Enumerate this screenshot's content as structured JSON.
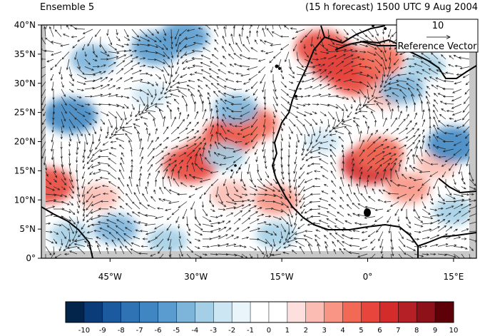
{
  "titles": {
    "left": "Ensemble 5",
    "right": "(15 h forecast) 1500 UTC 9 Aug 2004"
  },
  "reference_vector": {
    "magnitude": "10",
    "label": "Reference Vector"
  },
  "axes": {
    "lon_ticks": [
      "45°W",
      "30°W",
      "15°W",
      "0°",
      "15°E"
    ],
    "lat_ticks": [
      "0°",
      "5°N",
      "10°N",
      "15°N",
      "20°N",
      "25°N",
      "30°N",
      "35°N",
      "40°N"
    ]
  },
  "map_extent": {
    "lon": [
      -57,
      19
    ],
    "lat": [
      0,
      40
    ]
  },
  "colorbar": {
    "labels": [
      "-10",
      "-9",
      "-8",
      "-7",
      "-6",
      "-5",
      "-4",
      "-3",
      "-2",
      "-1",
      "0",
      "1",
      "2",
      "3",
      "4",
      "5",
      "6",
      "7",
      "8",
      "9",
      "10"
    ],
    "colors": [
      "#03254c",
      "#0b3c7a",
      "#1c5aa0",
      "#2f73b5",
      "#3f86c2",
      "#5a9ccf",
      "#7cb4da",
      "#a4cfe6",
      "#cce6f3",
      "#eaf5fb",
      "#ffffff",
      "#ffffff",
      "#fde0dd",
      "#fbbcb3",
      "#f89585",
      "#f26a56",
      "#e8453c",
      "#d42b2b",
      "#b51f26",
      "#8e1119",
      "#5e0008"
    ]
  },
  "chart_data": {
    "type": "heatmap",
    "title": "(15 h forecast) 1500 UTC 9 Aug 2004",
    "xlim": [
      -57,
      19
    ],
    "ylim": [
      0,
      40
    ],
    "cells": [
      {
        "lon": -5,
        "lat": 33.5,
        "v": 7
      },
      {
        "lon": -8,
        "lat": 36,
        "v": 6
      },
      {
        "lon": -2,
        "lat": 31,
        "v": 6
      },
      {
        "lon": 2,
        "lat": 34,
        "v": 5
      },
      {
        "lon": -24,
        "lat": 21,
        "v": 6
      },
      {
        "lon": -20,
        "lat": 23,
        "v": 5
      },
      {
        "lon": -28,
        "lat": 18,
        "v": 5
      },
      {
        "lon": -31,
        "lat": 16,
        "v": 6
      },
      {
        "lon": 0.5,
        "lat": 16,
        "v": 7
      },
      {
        "lon": 2,
        "lat": 18,
        "v": 5
      },
      {
        "lon": 7,
        "lat": 12,
        "v": 4
      },
      {
        "lon": -56,
        "lat": 12.5,
        "v": 6
      },
      {
        "lon": -16,
        "lat": 10,
        "v": 4
      },
      {
        "lon": -24,
        "lat": 11,
        "v": 3
      },
      {
        "lon": 12,
        "lat": 16,
        "v": 3
      },
      {
        "lon": -47,
        "lat": 10.5,
        "v": 3
      },
      {
        "lon": 3,
        "lat": 28,
        "v": 3
      },
      {
        "lon": -48,
        "lat": 34,
        "v": -4
      },
      {
        "lon": -37,
        "lat": 36,
        "v": -5
      },
      {
        "lon": -32,
        "lat": 38,
        "v": -5
      },
      {
        "lon": -52,
        "lat": 24.5,
        "v": -6
      },
      {
        "lon": -23,
        "lat": 25.5,
        "v": -4
      },
      {
        "lon": -25,
        "lat": 17.5,
        "v": -3
      },
      {
        "lon": 6,
        "lat": 29,
        "v": -4
      },
      {
        "lon": 10,
        "lat": 33,
        "v": -3
      },
      {
        "lon": -44,
        "lat": 5,
        "v": -4
      },
      {
        "lon": -35,
        "lat": 3,
        "v": -3
      },
      {
        "lon": -16,
        "lat": 4,
        "v": -3
      },
      {
        "lon": 15,
        "lat": 19.5,
        "v": -6
      },
      {
        "lon": -52,
        "lat": 4,
        "v": -3
      },
      {
        "lon": 15,
        "lat": 8,
        "v": -3
      },
      {
        "lon": -8,
        "lat": 20,
        "v": -2
      },
      {
        "lon": -38,
        "lat": 28,
        "v": -2
      }
    ]
  }
}
